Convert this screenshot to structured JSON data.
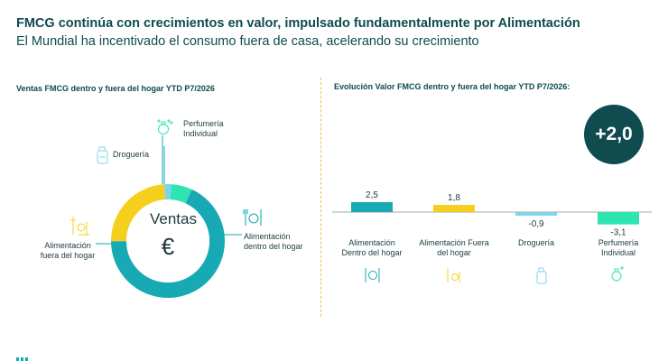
{
  "header": {
    "title": "FMCG continúa con crecimientos en valor, impulsado fundamentalmente por Alimentación",
    "subtitle": "El Mundial ha incentivado el consumo fuera de casa, acelerando su crecimiento"
  },
  "left_panel": {
    "title": "Ventas FMCG dentro y fuera del hogar YTD P7/2026",
    "center_label": "Ventas",
    "center_symbol": "€",
    "labels": {
      "perfumeria": "Perfumería Individual",
      "drogueria": "Droguería",
      "alim_fuera": "Alimentación fuera del hogar",
      "alim_dentro": "Alimentación dentro del hogar"
    }
  },
  "right_panel": {
    "title": "Evolución Valor FMCG dentro y fuera del hogar YTD P7/2026:",
    "badge": "+2,0"
  },
  "colors": {
    "teal": "#17aab4",
    "yellow": "#f5cf1d",
    "light_blue": "#7fd3ea",
    "mint": "#2ee5b2",
    "dark_teal": "#0f4b4f"
  },
  "chart_data": [
    {
      "type": "pie",
      "variant": "donut",
      "categories": [
        "Alimentación dentro del hogar",
        "Alimentación fuera del hogar",
        "Droguería",
        "Perfumería Individual"
      ],
      "values": [
        68,
        24,
        2,
        6
      ],
      "colors": [
        "#17aab4",
        "#f5cf1d",
        "#7fd3ea",
        "#2ee5b2"
      ]
    },
    {
      "type": "bar",
      "categories": [
        "Alimentación Dentro del hogar",
        "Alimentación Fuera del hogar",
        "Droguería",
        "Perfumería Individual"
      ],
      "values": [
        2.5,
        1.8,
        -0.9,
        -3.1
      ],
      "value_labels": [
        "2,5",
        "1,8",
        "-0,9",
        "-3,1"
      ],
      "colors": [
        "#17aab4",
        "#f5cf1d",
        "#7fd3ea",
        "#2ee5b2"
      ],
      "grid": false
    }
  ]
}
